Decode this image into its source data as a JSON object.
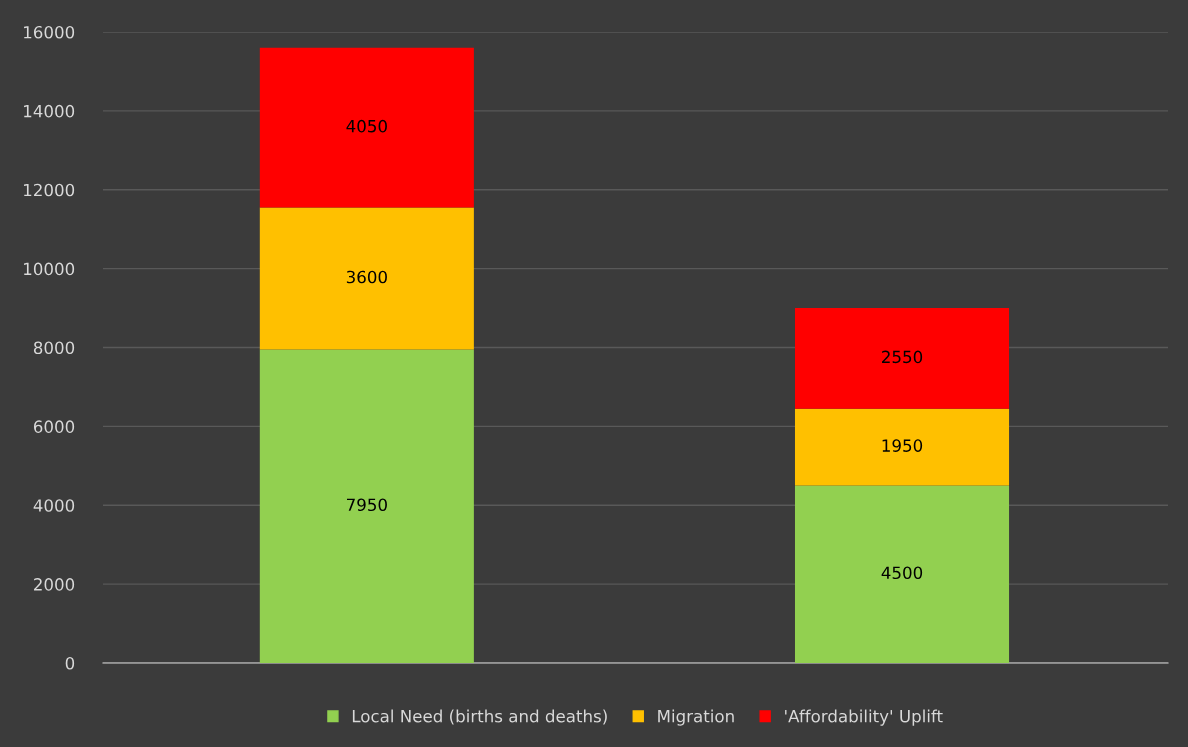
{
  "chart_data": {
    "type": "bar",
    "stacked": true,
    "categories": [
      null,
      null
    ],
    "series": [
      {
        "name": "Local Need (births and deaths)",
        "color": "#92d050",
        "values": [
          7950,
          4500
        ]
      },
      {
        "name": "Migration",
        "color": "#ffc000",
        "values": [
          3600,
          1950
        ]
      },
      {
        "name": "'Affordability' Uplift",
        "color": "#ff0000",
        "values": [
          4050,
          2550
        ]
      }
    ],
    "ylim": [
      0,
      16000
    ],
    "yticks": [
      0,
      2000,
      4000,
      6000,
      8000,
      10000,
      12000,
      14000,
      16000
    ],
    "grid": "y",
    "legend": "bottom",
    "data_labels": true
  }
}
